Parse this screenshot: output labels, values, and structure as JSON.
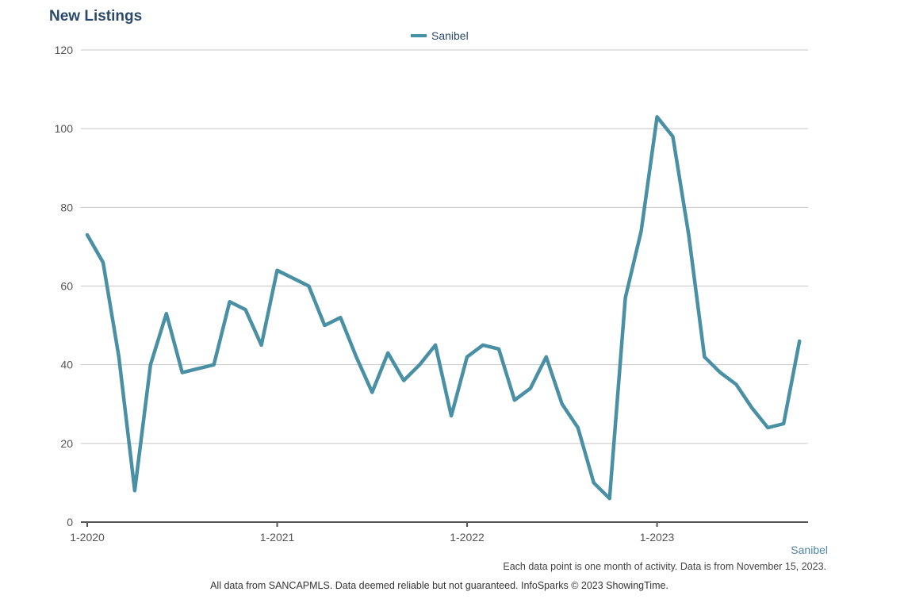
{
  "page": {
    "footer_series": "Sanibel",
    "note_frequency": "Each data point is one month of activity. Data is from November 15, 2023.",
    "note_source": "All data from SANCAPMLS. Data deemed reliable but not guaranteed. InfoSparks © 2023 ShowingTime."
  },
  "colors": {
    "series": "#4a90a4",
    "grid": "#c8c8c8",
    "axis": "#555555",
    "title": "#2b4a6b"
  },
  "chart_data": {
    "type": "line",
    "title": "New Listings",
    "xlabel": "",
    "ylabel": "",
    "ylim": [
      0,
      120
    ],
    "yticks": [
      0,
      20,
      40,
      60,
      80,
      100,
      120
    ],
    "xticks": [
      {
        "label": "1-2020",
        "x": "2020-01"
      },
      {
        "label": "1-2021",
        "x": "2021-01"
      },
      {
        "label": "1-2022",
        "x": "2022-01"
      },
      {
        "label": "1-2023",
        "x": "2023-01"
      }
    ],
    "grid": true,
    "legend": "top-center",
    "x": [
      "2020-01",
      "2020-02",
      "2020-03",
      "2020-04",
      "2020-05",
      "2020-06",
      "2020-07",
      "2020-08",
      "2020-09",
      "2020-10",
      "2020-11",
      "2020-12",
      "2021-01",
      "2021-02",
      "2021-03",
      "2021-04",
      "2021-05",
      "2021-06",
      "2021-07",
      "2021-08",
      "2021-09",
      "2021-10",
      "2021-11",
      "2021-12",
      "2022-01",
      "2022-02",
      "2022-03",
      "2022-04",
      "2022-05",
      "2022-06",
      "2022-07",
      "2022-08",
      "2022-09",
      "2022-10",
      "2022-11",
      "2022-12",
      "2023-01",
      "2023-02",
      "2023-03",
      "2023-04",
      "2023-05",
      "2023-06",
      "2023-07",
      "2023-08",
      "2023-09",
      "2023-10"
    ],
    "series": [
      {
        "name": "Sanibel",
        "values": [
          73,
          66,
          42,
          8,
          40,
          53,
          38,
          39,
          40,
          56,
          54,
          45,
          64,
          62,
          60,
          50,
          52,
          42,
          33,
          43,
          36,
          40,
          45,
          27,
          42,
          45,
          44,
          31,
          34,
          42,
          30,
          24,
          10,
          6,
          57,
          74,
          103,
          98,
          73,
          42,
          38,
          35,
          29,
          24,
          25,
          46
        ]
      }
    ]
  }
}
